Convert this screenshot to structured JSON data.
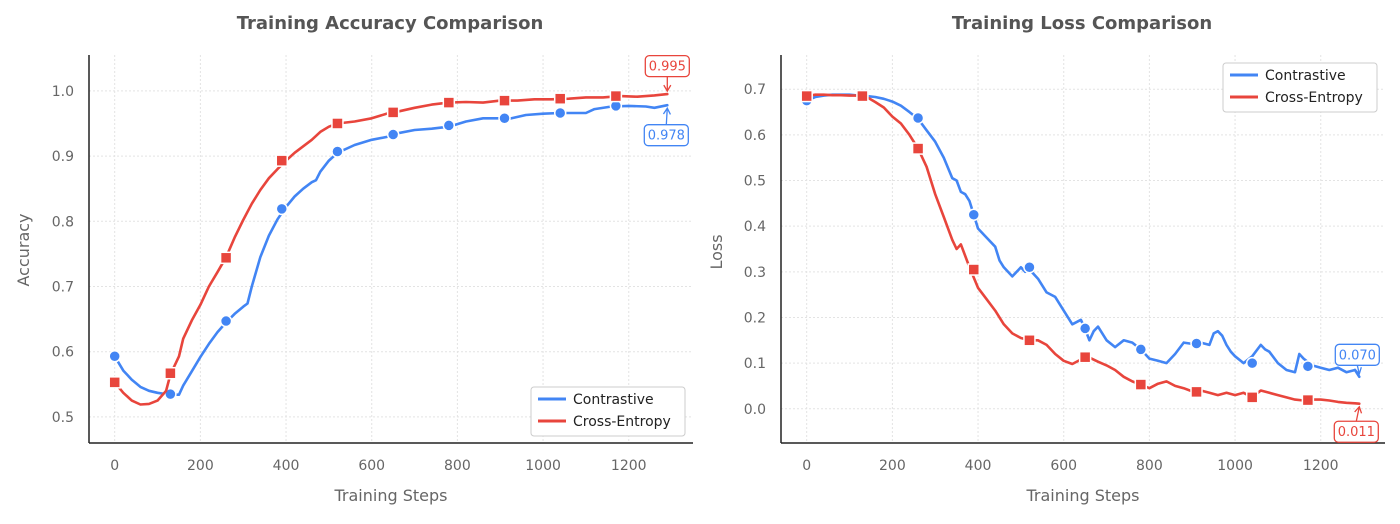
{
  "colors": {
    "contrastive": "#4285f4",
    "cross_entropy": "#e8453c"
  },
  "chart_data": [
    {
      "type": "line",
      "title": "Training Accuracy Comparison",
      "xlabel": "Training Steps",
      "ylabel": "Accuracy",
      "xlim": [
        -60,
        1350
      ],
      "ylim": [
        0.46,
        1.055
      ],
      "xticks": [
        "0",
        "200",
        "400",
        "600",
        "800",
        "1000",
        "1200"
      ],
      "yticks": [
        "0.5",
        "0.6",
        "0.7",
        "0.8",
        "0.9",
        "1.0"
      ],
      "grid": true,
      "legend_position": "lower-right",
      "series": [
        {
          "name": "Contrastive",
          "x": [
            0,
            20,
            40,
            60,
            80,
            100,
            120,
            140,
            150,
            160,
            180,
            200,
            220,
            240,
            260,
            280,
            300,
            310,
            320,
            340,
            360,
            380,
            400,
            420,
            440,
            460,
            470,
            480,
            500,
            520,
            560,
            600,
            640,
            660,
            700,
            740,
            780,
            820,
            860,
            900,
            920,
            960,
            1000,
            1040,
            1080,
            1100,
            1120,
            1160,
            1200,
            1240,
            1260,
            1290
          ],
          "y": [
            0.593,
            0.571,
            0.557,
            0.546,
            0.54,
            0.537,
            0.535,
            0.534,
            0.534,
            0.548,
            0.57,
            0.592,
            0.612,
            0.63,
            0.645,
            0.658,
            0.669,
            0.674,
            0.7,
            0.745,
            0.778,
            0.803,
            0.822,
            0.838,
            0.85,
            0.86,
            0.863,
            0.876,
            0.893,
            0.905,
            0.917,
            0.925,
            0.93,
            0.935,
            0.94,
            0.942,
            0.945,
            0.953,
            0.958,
            0.958,
            0.957,
            0.963,
            0.965,
            0.966,
            0.966,
            0.966,
            0.972,
            0.976,
            0.977,
            0.976,
            0.974,
            0.978
          ],
          "markers_x": [
            0,
            130,
            260,
            390,
            520,
            650,
            780,
            910,
            1040,
            1170
          ],
          "markers_y": [
            0.593,
            0.535,
            0.647,
            0.819,
            0.907,
            0.933,
            0.947,
            0.958,
            0.966,
            0.977
          ]
        },
        {
          "name": "Cross-Entropy",
          "x": [
            0,
            20,
            40,
            60,
            80,
            100,
            120,
            130,
            150,
            160,
            180,
            200,
            220,
            240,
            260,
            280,
            300,
            320,
            340,
            360,
            380,
            400,
            420,
            440,
            460,
            480,
            500,
            520,
            560,
            600,
            640,
            660,
            700,
            740,
            780,
            820,
            860,
            900,
            940,
            980,
            1020,
            1060,
            1100,
            1140,
            1180,
            1220,
            1260,
            1290
          ],
          "y": [
            0.553,
            0.537,
            0.525,
            0.519,
            0.52,
            0.525,
            0.54,
            0.565,
            0.593,
            0.62,
            0.648,
            0.672,
            0.7,
            0.722,
            0.745,
            0.775,
            0.802,
            0.827,
            0.848,
            0.866,
            0.88,
            0.893,
            0.905,
            0.915,
            0.925,
            0.937,
            0.945,
            0.95,
            0.953,
            0.958,
            0.966,
            0.968,
            0.974,
            0.979,
            0.982,
            0.983,
            0.982,
            0.985,
            0.985,
            0.987,
            0.987,
            0.988,
            0.99,
            0.99,
            0.992,
            0.991,
            0.993,
            0.995
          ],
          "markers_x": [
            0,
            130,
            260,
            390,
            520,
            650,
            780,
            910,
            1040,
            1170
          ],
          "markers_y": [
            0.553,
            0.567,
            0.744,
            0.893,
            0.95,
            0.967,
            0.982,
            0.985,
            0.988,
            0.992
          ]
        }
      ],
      "annotations": [
        {
          "series": "Cross-Entropy",
          "text": "0.995",
          "x": 1290,
          "y": 0.995
        },
        {
          "series": "Contrastive",
          "text": "0.978",
          "x": 1290,
          "y": 0.978
        }
      ]
    },
    {
      "type": "line",
      "title": "Training Loss Comparison",
      "xlabel": "Training Steps",
      "ylabel": "Loss",
      "xlim": [
        -60,
        1350
      ],
      "ylim": [
        -0.075,
        0.775
      ],
      "xticks": [
        "0",
        "200",
        "400",
        "600",
        "800",
        "1000",
        "1200"
      ],
      "yticks": [
        "0.0",
        "0.1",
        "0.2",
        "0.3",
        "0.4",
        "0.5",
        "0.6",
        "0.7"
      ],
      "grid": true,
      "legend_position": "upper-right",
      "series": [
        {
          "name": "Contrastive",
          "x": [
            0,
            20,
            40,
            60,
            80,
            100,
            120,
            140,
            160,
            180,
            200,
            220,
            240,
            260,
            280,
            300,
            320,
            340,
            350,
            360,
            370,
            380,
            390,
            400,
            420,
            440,
            450,
            460,
            480,
            500,
            510,
            520,
            540,
            560,
            580,
            600,
            620,
            640,
            650,
            660,
            670,
            680,
            700,
            720,
            740,
            760,
            780,
            800,
            820,
            840,
            860,
            880,
            900,
            920,
            940,
            950,
            960,
            970,
            980,
            990,
            1000,
            1020,
            1040,
            1060,
            1070,
            1080,
            1100,
            1120,
            1140,
            1150,
            1160,
            1180,
            1200,
            1220,
            1240,
            1260,
            1280,
            1290
          ],
          "y": [
            0.675,
            0.683,
            0.686,
            0.688,
            0.688,
            0.688,
            0.686,
            0.685,
            0.683,
            0.679,
            0.673,
            0.664,
            0.65,
            0.635,
            0.61,
            0.585,
            0.55,
            0.505,
            0.5,
            0.475,
            0.47,
            0.455,
            0.425,
            0.395,
            0.375,
            0.355,
            0.325,
            0.31,
            0.29,
            0.31,
            0.3,
            0.305,
            0.285,
            0.255,
            0.245,
            0.215,
            0.185,
            0.195,
            0.175,
            0.15,
            0.17,
            0.18,
            0.15,
            0.135,
            0.15,
            0.145,
            0.13,
            0.11,
            0.105,
            0.1,
            0.12,
            0.145,
            0.142,
            0.145,
            0.14,
            0.165,
            0.17,
            0.16,
            0.14,
            0.125,
            0.115,
            0.1,
            0.115,
            0.14,
            0.13,
            0.125,
            0.1,
            0.085,
            0.08,
            0.12,
            0.11,
            0.095,
            0.09,
            0.085,
            0.09,
            0.08,
            0.085,
            0.07
          ],
          "markers_x": [
            0,
            130,
            260,
            390,
            520,
            650,
            780,
            910,
            1040,
            1170
          ],
          "markers_y": [
            0.675,
            0.685,
            0.637,
            0.425,
            0.31,
            0.176,
            0.13,
            0.143,
            0.1,
            0.093
          ]
        },
        {
          "name": "Cross-Entropy",
          "x": [
            0,
            20,
            40,
            60,
            80,
            100,
            120,
            140,
            160,
            180,
            200,
            220,
            240,
            260,
            280,
            300,
            320,
            340,
            350,
            360,
            380,
            400,
            420,
            440,
            460,
            480,
            500,
            520,
            540,
            560,
            580,
            600,
            620,
            640,
            660,
            680,
            700,
            720,
            740,
            760,
            780,
            800,
            820,
            840,
            860,
            880,
            900,
            920,
            940,
            960,
            980,
            1000,
            1020,
            1040,
            1060,
            1080,
            1100,
            1120,
            1140,
            1160,
            1180,
            1200,
            1220,
            1240,
            1260,
            1280,
            1290
          ],
          "y": [
            0.685,
            0.688,
            0.688,
            0.687,
            0.687,
            0.686,
            0.686,
            0.683,
            0.672,
            0.66,
            0.64,
            0.625,
            0.6,
            0.57,
            0.53,
            0.47,
            0.42,
            0.37,
            0.35,
            0.36,
            0.31,
            0.265,
            0.24,
            0.215,
            0.185,
            0.165,
            0.155,
            0.15,
            0.15,
            0.14,
            0.12,
            0.105,
            0.098,
            0.108,
            0.112,
            0.103,
            0.095,
            0.085,
            0.07,
            0.06,
            0.053,
            0.045,
            0.055,
            0.06,
            0.05,
            0.045,
            0.038,
            0.04,
            0.035,
            0.03,
            0.035,
            0.03,
            0.035,
            0.025,
            0.04,
            0.035,
            0.03,
            0.025,
            0.02,
            0.018,
            0.02,
            0.02,
            0.018,
            0.015,
            0.013,
            0.012,
            0.011
          ],
          "markers_x": [
            0,
            130,
            260,
            390,
            520,
            650,
            780,
            910,
            1040,
            1170
          ],
          "markers_y": [
            0.685,
            0.685,
            0.57,
            0.305,
            0.15,
            0.113,
            0.053,
            0.037,
            0.025,
            0.019
          ]
        }
      ],
      "annotations": [
        {
          "series": "Contrastive",
          "text": "0.070",
          "x": 1290,
          "y": 0.07
        },
        {
          "series": "Cross-Entropy",
          "text": "0.011",
          "x": 1290,
          "y": 0.011
        }
      ]
    }
  ]
}
